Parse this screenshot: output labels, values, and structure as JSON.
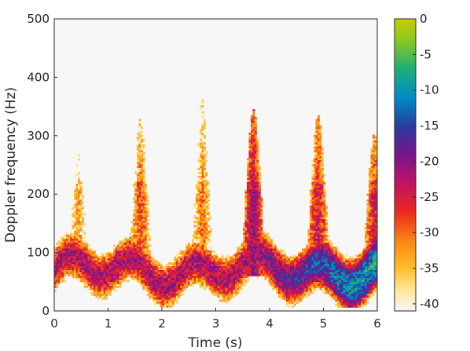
{
  "chart_data": {
    "type": "heatmap",
    "title": "",
    "xlabel": "Time (s)",
    "ylabel": "Doppler frequency (Hz)",
    "xlim": [
      0,
      6
    ],
    "ylim": [
      0,
      500
    ],
    "xticks": [
      0,
      1,
      2,
      3,
      4,
      5,
      6
    ],
    "yticks": [
      0,
      100,
      200,
      300,
      400,
      500
    ],
    "colorbar": {
      "label": "",
      "range": [
        -41,
        0
      ],
      "ticks": [
        0,
        -5,
        -10,
        -15,
        -20,
        -25,
        -30,
        -35,
        -40
      ],
      "colormap": "parula-like multicolor (white-yellow-orange-red-magenta-purple-blue-cyan-green-yellowgreen)"
    },
    "background_level": -41,
    "torso_band": {
      "approx_frequency_range_hz": [
        20,
        130
      ],
      "peak_level_db": -8,
      "trend": "band brightens (stronger returns) toward later times, strongest around 5.2-6 s near 40-110 Hz"
    },
    "limb_flashes": [
      {
        "time_s": 0.45,
        "peak_frequency_hz": 300,
        "peak_level_db": -33
      },
      {
        "time_s": 1.6,
        "peak_frequency_hz": 330,
        "peak_level_db": -28
      },
      {
        "time_s": 2.75,
        "peak_frequency_hz": 365,
        "peak_level_db": -30
      },
      {
        "time_s": 3.7,
        "peak_frequency_hz": 345,
        "peak_level_db": -20
      },
      {
        "time_s": 4.9,
        "peak_frequency_hz": 335,
        "peak_level_db": -24
      },
      {
        "time_s": 5.95,
        "peak_frequency_hz": 305,
        "peak_level_db": -24
      }
    ]
  }
}
